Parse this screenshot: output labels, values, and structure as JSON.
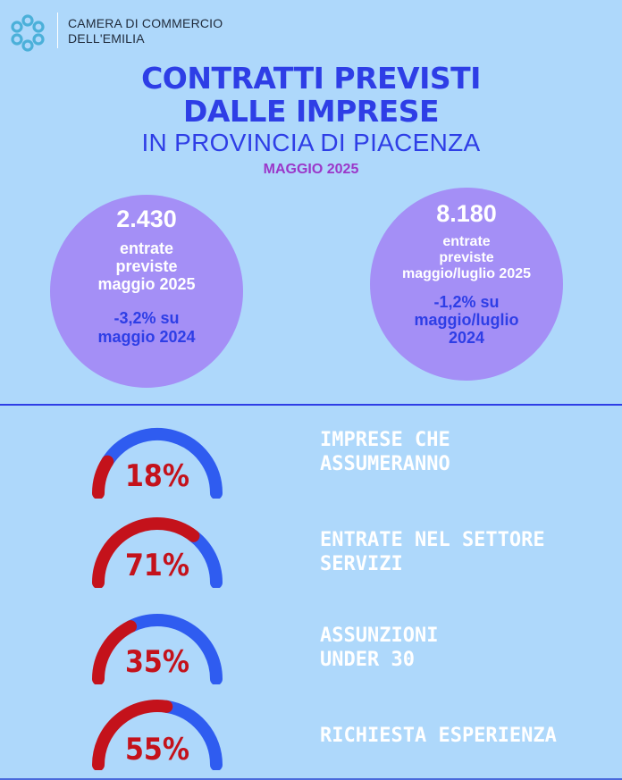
{
  "header": {
    "org_line1": "CAMERA DI COMMERCIO",
    "org_line2": "DELL'EMILIA",
    "logo_icon": "chamber-of-commerce-logo-icon"
  },
  "title": {
    "line1": "CONTRATTI PREVISTI",
    "line2": "DALLE IMPRESE",
    "subtitle": "IN PROVINCIA DI PIACENZA",
    "month": "MAGGIO 2025"
  },
  "stats": [
    {
      "value": "2.430",
      "desc": [
        "entrate",
        "previste",
        "maggio 2025"
      ],
      "delta": [
        "-3,2% su",
        "maggio 2024"
      ]
    },
    {
      "value": "8.180",
      "desc": [
        "entrate",
        "previste",
        "maggio/luglio 2025"
      ],
      "delta": [
        "-1,2% su",
        "maggio/luglio",
        "2024"
      ]
    }
  ],
  "gauges": [
    {
      "percent": 18,
      "label": "18%",
      "caption": [
        "IMPRESE CHE",
        "ASSUMERANNO"
      ]
    },
    {
      "percent": 71,
      "label": "71%",
      "caption": [
        "ENTRATE NEL SETTORE",
        "SERVIZI"
      ]
    },
    {
      "percent": 35,
      "label": "35%",
      "caption": [
        "ASSUNZIONI",
        "UNDER 30"
      ]
    },
    {
      "percent": 55,
      "label": "55%",
      "caption": [
        "RICHIESTA ESPERIENZA"
      ]
    }
  ],
  "colors": {
    "background": "#aed8fb",
    "title_blue": "#2e3ee6",
    "month_purple": "#9b37c9",
    "bubble": "#a48ff6",
    "gauge_fill": "#c4121b",
    "gauge_track": "#2f5cf0"
  }
}
